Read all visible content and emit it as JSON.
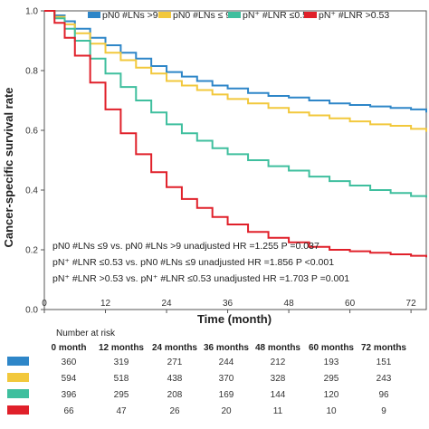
{
  "chart_data": {
    "type": "line",
    "xlabel": "Time (month)",
    "ylabel": "Cancer-specific survival rate",
    "xlim": [
      0,
      75
    ],
    "ylim": [
      0,
      1.0
    ],
    "x_ticks": [
      "0",
      "12",
      "24",
      "36",
      "48",
      "60",
      "72"
    ],
    "y_ticks": [
      "0.0",
      "0.2",
      "0.4",
      "0.6",
      "0.8",
      "1.0"
    ],
    "legend_placement": "top",
    "series": [
      {
        "name": "pN0 #LNs >9",
        "color": "#2e86c8",
        "x": [
          0,
          2,
          4,
          6,
          9,
          12,
          15,
          18,
          21,
          24,
          27,
          30,
          33,
          36,
          40,
          44,
          48,
          52,
          56,
          60,
          64,
          68,
          72,
          75
        ],
        "y": [
          1.0,
          0.985,
          0.965,
          0.94,
          0.91,
          0.885,
          0.86,
          0.84,
          0.815,
          0.795,
          0.78,
          0.765,
          0.75,
          0.74,
          0.725,
          0.715,
          0.71,
          0.7,
          0.69,
          0.685,
          0.68,
          0.675,
          0.67,
          0.66
        ]
      },
      {
        "name": "pN0 #LNs ≤ 9",
        "color": "#f2c83c",
        "x": [
          0,
          2,
          4,
          6,
          9,
          12,
          15,
          18,
          21,
          24,
          27,
          30,
          33,
          36,
          40,
          44,
          48,
          52,
          56,
          60,
          64,
          68,
          72,
          75
        ],
        "y": [
          1.0,
          0.98,
          0.955,
          0.925,
          0.89,
          0.86,
          0.835,
          0.81,
          0.79,
          0.765,
          0.75,
          0.735,
          0.72,
          0.705,
          0.69,
          0.675,
          0.66,
          0.65,
          0.64,
          0.63,
          0.62,
          0.615,
          0.605,
          0.595
        ]
      },
      {
        "name": "pN⁺ #LNR ≤0.53",
        "color": "#3fbf9e",
        "x": [
          0,
          2,
          4,
          6,
          9,
          12,
          15,
          18,
          21,
          24,
          27,
          30,
          33,
          36,
          40,
          44,
          48,
          52,
          56,
          60,
          64,
          68,
          72,
          75
        ],
        "y": [
          1.0,
          0.975,
          0.94,
          0.9,
          0.84,
          0.79,
          0.745,
          0.7,
          0.66,
          0.62,
          0.59,
          0.565,
          0.54,
          0.52,
          0.5,
          0.48,
          0.465,
          0.445,
          0.43,
          0.415,
          0.4,
          0.39,
          0.38,
          0.375
        ]
      },
      {
        "name": "pN⁺ #LNR >0.53",
        "color": "#e0202a",
        "x": [
          0,
          2,
          4,
          6,
          9,
          12,
          15,
          18,
          21,
          24,
          27,
          30,
          33,
          36,
          40,
          44,
          48,
          52,
          56,
          60,
          64,
          68,
          72,
          75
        ],
        "y": [
          1.0,
          0.96,
          0.91,
          0.85,
          0.76,
          0.67,
          0.59,
          0.52,
          0.46,
          0.41,
          0.37,
          0.34,
          0.31,
          0.285,
          0.26,
          0.24,
          0.225,
          0.21,
          0.2,
          0.195,
          0.19,
          0.185,
          0.18,
          0.175
        ]
      }
    ],
    "annotations": [
      "pN0 #LNs ≤9 vs. pN0 #LNs >9 unadjusted HR =1.255 P =0.037",
      "pN⁺ #LNR ≤0.53 vs. pN0 #LNs ≤9 unadjusted HR =1.856 P <0.001",
      "pN⁺ #LNR >0.53 vs. pN⁺ #LNR ≤0.53 unadjusted HR =1.703 P =0.001"
    ],
    "risk_table": {
      "title": "Number at risk",
      "columns": [
        "0 month",
        "12 months",
        "24 months",
        "36 months",
        "48 months",
        "60 months",
        "72 months"
      ],
      "rows": [
        {
          "color": "#2e86c8",
          "values": [
            "360",
            "319",
            "271",
            "244",
            "212",
            "193",
            "151"
          ]
        },
        {
          "color": "#f2c83c",
          "values": [
            "594",
            "518",
            "438",
            "370",
            "328",
            "295",
            "243"
          ]
        },
        {
          "color": "#3fbf9e",
          "values": [
            "396",
            "295",
            "208",
            "169",
            "144",
            "120",
            "96"
          ]
        },
        {
          "color": "#e0202a",
          "values": [
            "66",
            "47",
            "26",
            "20",
            "11",
            "10",
            "9"
          ]
        }
      ]
    }
  }
}
